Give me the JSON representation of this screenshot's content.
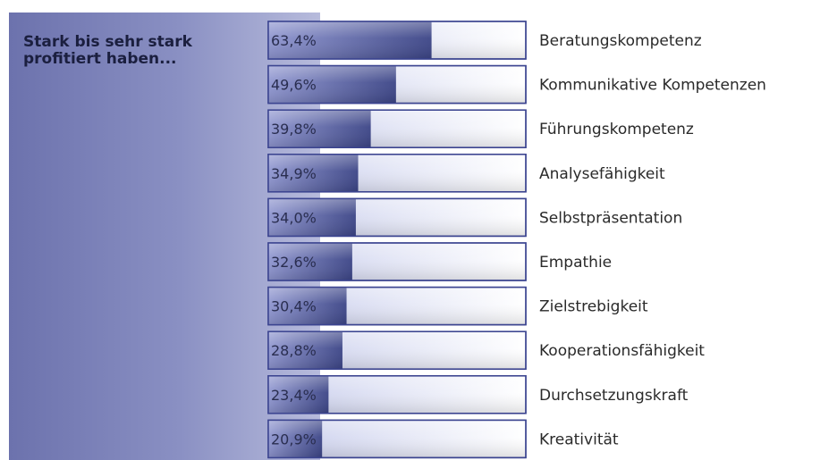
{
  "chart_data": {
    "type": "bar",
    "orientation": "horizontal",
    "title": "Stark bis sehr stark\nprofitiert haben...",
    "categories": [
      "Beratungskompetenz",
      "Kommunikative Kompetenzen",
      "Führungskompetenz",
      "Analysefähigkeit",
      "Selbstpräsentation",
      "Empathie",
      "Zielstrebigkeit",
      "Kooperationsfähigkeit",
      "Durchsetzungskraft",
      "Kreativität"
    ],
    "values": [
      63.4,
      49.6,
      39.8,
      34.9,
      34.0,
      32.6,
      30.4,
      28.8,
      23.4,
      20.9
    ],
    "value_labels": [
      "63,4%",
      "49,6%",
      "39,8%",
      "34,9%",
      "34,0%",
      "32,6%",
      "30,4%",
      "28,8%",
      "23,4%",
      "20,9%"
    ],
    "unit": "%",
    "xlim": [
      0,
      100
    ],
    "grid": false,
    "legend": "none",
    "colors": {
      "panel_dark": "#6c72ad",
      "panel_light": "#b7bbdc",
      "fill_dark": "#3b4486",
      "fill_light": "#8e95cf",
      "track_dark": "#c8cdec",
      "track_light": "#ffffff",
      "border": "#3b4490"
    }
  }
}
